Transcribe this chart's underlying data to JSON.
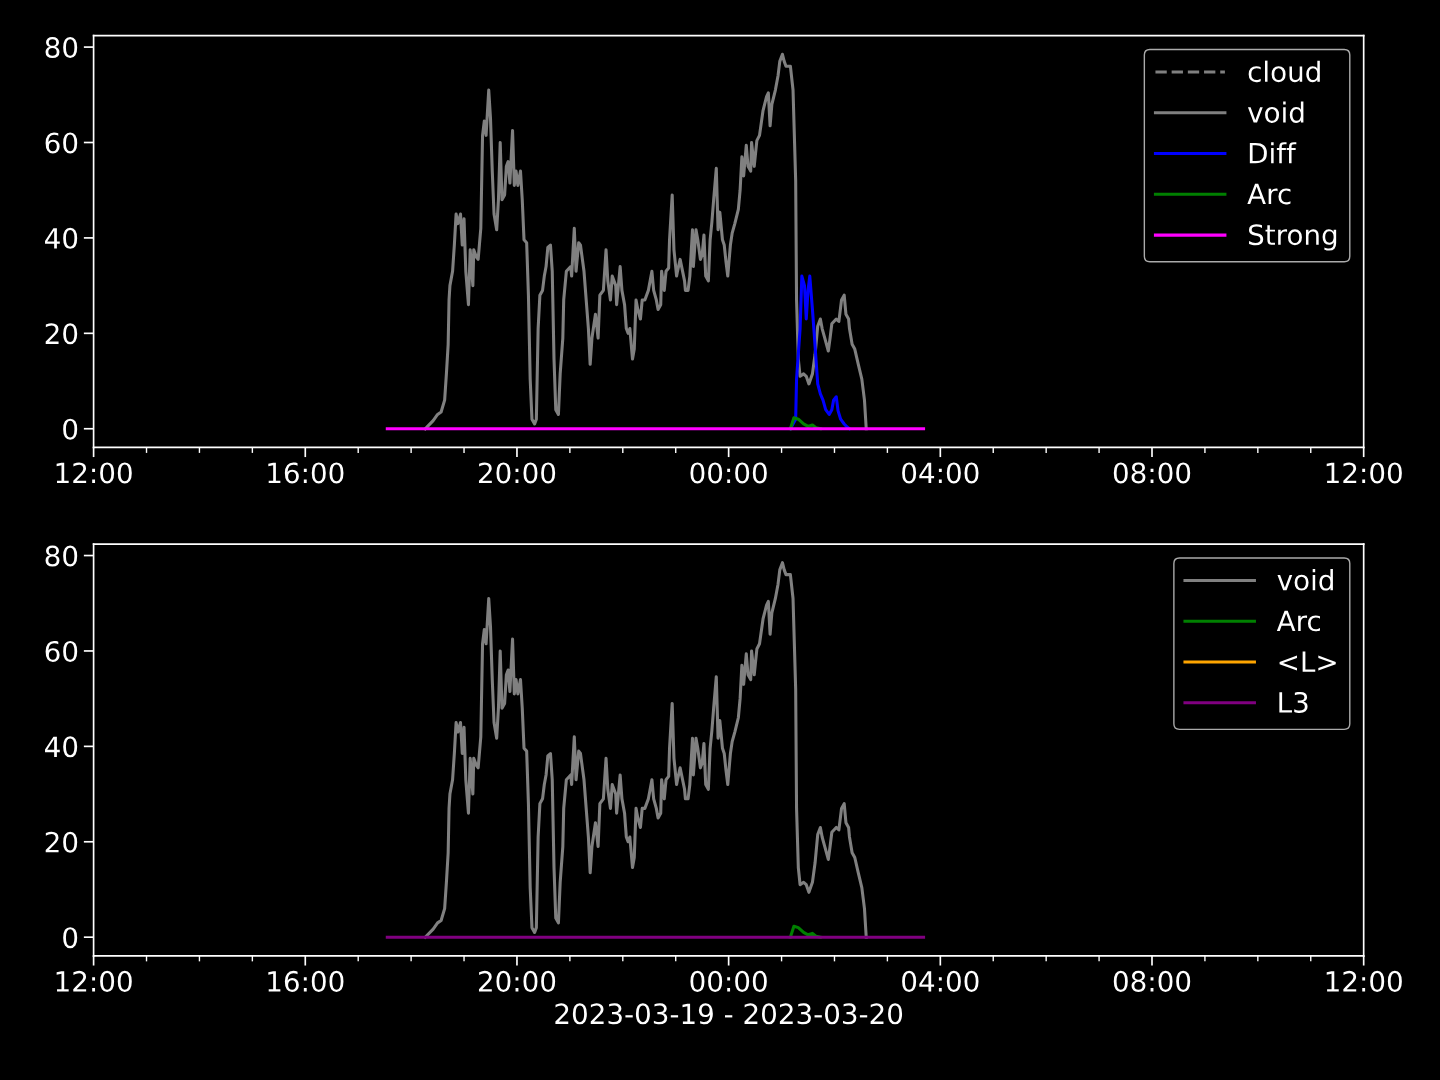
{
  "chart_data": [
    {
      "type": "line",
      "xlim": [
        "2023-03-19T12:00",
        "2023-03-20T12:00"
      ],
      "ylim": [
        -3.9,
        82.4
      ],
      "yticks": [
        0,
        20,
        40,
        60,
        80
      ],
      "xticks": [
        {
          "value": "2023-03-19T12:00",
          "label": "12:00"
        },
        {
          "value": "2023-03-19T13:00",
          "label": null
        },
        {
          "value": "2023-03-19T14:00",
          "label": null
        },
        {
          "value": "2023-03-19T15:00",
          "label": null
        },
        {
          "value": "2023-03-19T16:00",
          "label": "16:00"
        },
        {
          "value": "2023-03-19T17:00",
          "label": null
        },
        {
          "value": "2023-03-19T18:00",
          "label": null
        },
        {
          "value": "2023-03-19T19:00",
          "label": null
        },
        {
          "value": "2023-03-19T20:00",
          "label": "20:00"
        },
        {
          "value": "2023-03-19T21:00",
          "label": null
        },
        {
          "value": "2023-03-19T22:00",
          "label": null
        },
        {
          "value": "2023-03-19T23:00",
          "label": null
        },
        {
          "value": "2023-03-20T00:00",
          "label": "00:00"
        },
        {
          "value": "2023-03-20T01:00",
          "label": null
        },
        {
          "value": "2023-03-20T02:00",
          "label": null
        },
        {
          "value": "2023-03-20T03:00",
          "label": null
        },
        {
          "value": "2023-03-20T04:00",
          "label": "04:00"
        },
        {
          "value": "2023-03-20T05:00",
          "label": null
        },
        {
          "value": "2023-03-20T06:00",
          "label": null
        },
        {
          "value": "2023-03-20T07:00",
          "label": null
        },
        {
          "value": "2023-03-20T08:00",
          "label": "08:00"
        },
        {
          "value": "2023-03-20T09:00",
          "label": null
        },
        {
          "value": "2023-03-20T10:00",
          "label": null
        },
        {
          "value": "2023-03-20T11:00",
          "label": null
        },
        {
          "value": "2023-03-20T12:00",
          "label": "12:00"
        }
      ],
      "legend": "top right",
      "series": [
        {
          "name": "cloud",
          "color": "#808080",
          "line_style": "dashed"
        },
        {
          "name": "void",
          "color": "#808080",
          "line_style": "solid",
          "x": [
            "2023-03-19T18:16",
            "2023-03-19T18:25",
            "2023-03-19T18:30",
            "2023-03-19T18:34",
            "2023-03-19T18:38",
            "2023-03-19T18:40",
            "2023-03-19T18:42",
            "2023-03-19T18:43",
            "2023-03-19T18:44",
            "2023-03-19T18:47",
            "2023-03-19T18:49",
            "2023-03-19T18:51",
            "2023-03-19T18:53",
            "2023-03-19T18:56",
            "2023-03-19T18:58",
            "2023-03-19T19:00",
            "2023-03-19T19:02",
            "2023-03-19T19:05",
            "2023-03-19T19:07",
            "2023-03-19T19:10",
            "2023-03-19T19:11",
            "2023-03-19T19:14",
            "2023-03-19T19:16",
            "2023-03-19T19:19",
            "2023-03-19T19:21",
            "2023-03-19T19:23",
            "2023-03-19T19:25",
            "2023-03-19T19:28",
            "2023-03-19T19:30",
            "2023-03-19T19:32",
            "2023-03-19T19:34",
            "2023-03-19T19:37",
            "2023-03-19T19:39",
            "2023-03-19T19:41",
            "2023-03-19T19:43",
            "2023-03-19T19:46",
            "2023-03-19T19:48",
            "2023-03-19T19:50",
            "2023-03-19T19:52",
            "2023-03-19T19:55",
            "2023-03-19T19:57",
            "2023-03-19T19:59",
            "2023-03-19T20:01",
            "2023-03-19T20:04",
            "2023-03-19T20:06",
            "2023-03-19T20:08",
            "2023-03-19T20:11",
            "2023-03-19T20:13",
            "2023-03-19T20:15",
            "2023-03-19T20:17",
            "2023-03-19T20:20",
            "2023-03-19T20:22",
            "2023-03-19T20:24",
            "2023-03-19T20:26",
            "2023-03-19T20:29",
            "2023-03-19T20:31",
            "2023-03-19T20:33",
            "2023-03-19T20:35",
            "2023-03-19T20:38",
            "2023-03-19T20:40",
            "2023-03-19T20:42",
            "2023-03-19T20:44",
            "2023-03-19T20:47",
            "2023-03-19T20:49",
            "2023-03-19T20:52",
            "2023-03-19T20:53",
            "2023-03-19T20:56",
            "2023-03-19T21:01",
            "2023-03-19T21:02",
            "2023-03-19T21:05",
            "2023-03-19T21:07",
            "2023-03-19T21:10",
            "2023-03-19T21:12",
            "2023-03-19T21:16",
            "2023-03-19T21:21",
            "2023-03-19T21:23",
            "2023-03-19T21:25",
            "2023-03-19T21:29",
            "2023-03-19T21:32",
            "2023-03-19T21:34",
            "2023-03-19T21:38",
            "2023-03-19T21:41",
            "2023-03-19T21:43",
            "2023-03-19T21:46",
            "2023-03-19T21:48",
            "2023-03-19T21:52",
            "2023-03-19T21:53",
            "2023-03-19T21:57",
            "2023-03-19T21:59",
            "2023-03-19T22:02",
            "2023-03-19T22:04",
            "2023-03-19T22:06",
            "2023-03-19T22:08",
            "2023-03-19T22:11",
            "2023-03-19T22:13",
            "2023-03-19T22:15",
            "2023-03-19T22:17",
            "2023-03-19T22:20",
            "2023-03-19T22:22",
            "2023-03-19T22:25",
            "2023-03-19T22:29",
            "2023-03-19T22:33",
            "2023-03-19T22:35",
            "2023-03-19T22:38",
            "2023-03-19T22:40",
            "2023-03-19T22:43",
            "2023-03-19T22:44",
            "2023-03-19T22:47",
            "2023-03-19T22:49",
            "2023-03-19T22:52",
            "2023-03-19T22:53",
            "2023-03-19T22:56",
            "2023-03-19T22:58",
            "2023-03-19T23:01",
            "2023-03-19T23:02",
            "2023-03-19T23:05",
            "2023-03-19T23:10",
            "2023-03-19T23:11",
            "2023-03-19T23:14",
            "2023-03-19T23:16",
            "2023-03-19T23:19",
            "2023-03-19T23:20",
            "2023-03-19T23:23",
            "2023-03-19T23:25",
            "2023-03-19T23:28",
            "2023-03-19T23:30",
            "2023-03-19T23:32",
            "2023-03-19T23:34",
            "2023-03-19T23:37",
            "2023-03-19T23:39",
            "2023-03-19T23:41",
            "2023-03-19T23:43",
            "2023-03-19T23:46",
            "2023-03-19T23:48",
            "2023-03-19T23:50",
            "2023-03-19T23:53",
            "2023-03-19T23:55",
            "2023-03-19T23:57",
            "2023-03-19T23:59",
            "2023-03-20T00:02",
            "2023-03-20T00:04",
            "2023-03-20T00:07",
            "2023-03-20T00:11",
            "2023-03-20T00:13",
            "2023-03-20T00:15",
            "2023-03-20T00:17",
            "2023-03-20T00:20",
            "2023-03-20T00:22",
            "2023-03-20T00:25",
            "2023-03-20T00:26",
            "2023-03-20T00:29",
            "2023-03-20T00:32",
            "2023-03-20T00:35",
            "2023-03-20T00:39",
            "2023-03-20T00:43",
            "2023-03-20T00:45",
            "2023-03-20T00:47",
            "2023-03-20T00:49",
            "2023-03-20T00:53",
            "2023-03-20T00:56",
            "2023-03-20T00:58",
            "2023-03-20T01:01",
            "2023-03-20T01:03",
            "2023-03-20T01:05",
            "2023-03-20T01:10",
            "2023-03-20T01:13",
            "2023-03-20T01:16",
            "2023-03-20T01:17",
            "2023-03-20T01:19",
            "2023-03-20T01:21",
            "2023-03-20T01:25",
            "2023-03-20T01:28",
            "2023-03-20T01:31",
            "2023-03-20T01:35",
            "2023-03-20T01:38",
            "2023-03-20T01:41",
            "2023-03-20T01:44",
            "2023-03-20T01:46",
            "2023-03-20T01:49",
            "2023-03-20T01:53",
            "2023-03-20T01:55",
            "2023-03-20T01:57",
            "2023-03-20T02:02",
            "2023-03-20T02:05",
            "2023-03-20T02:08",
            "2023-03-20T02:11",
            "2023-03-20T02:13",
            "2023-03-20T02:16",
            "2023-03-20T02:17",
            "2023-03-20T02:20",
            "2023-03-20T02:23",
            "2023-03-20T02:27",
            "2023-03-20T02:31",
            "2023-03-20T02:34",
            "2023-03-20T02:36"
          ],
          "values": [
            0,
            1.7,
            3,
            3.5,
            6,
            11.5,
            17.7,
            27,
            30,
            33,
            38.5,
            45,
            43,
            45,
            38.5,
            44,
            33,
            26,
            37.5,
            30,
            37.5,
            36,
            35.5,
            42,
            61.5,
            64.5,
            61.5,
            71,
            65,
            54,
            45,
            41.7,
            48,
            60,
            48,
            49,
            55,
            56,
            51.5,
            62.5,
            51,
            54,
            51,
            54,
            48,
            39.6,
            39,
            28,
            10.4,
            2,
            1,
            2,
            21,
            28,
            29,
            32,
            34,
            38,
            38.5,
            33,
            14.6,
            4,
            3,
            11.5,
            19,
            27,
            33,
            34,
            32,
            42,
            33,
            39,
            38.5,
            33,
            21,
            13.5,
            19,
            24,
            19,
            28,
            29,
            37.5,
            31,
            27,
            32,
            30,
            26,
            34,
            29,
            26,
            21,
            20,
            21,
            14.6,
            16.7,
            27,
            25,
            23,
            27,
            27,
            29,
            33,
            29,
            27,
            25,
            26,
            33,
            29,
            33,
            33.7,
            39.6,
            49,
            37.5,
            32,
            33,
            35.5,
            31,
            29,
            29,
            32,
            41.7,
            34,
            41.7,
            39.6,
            35.5,
            36.5,
            40.6,
            32,
            31,
            39.6,
            43.3,
            48,
            54.6,
            41.7,
            45.4,
            39.6,
            38.5,
            35,
            32,
            38.5,
            41,
            43,
            46,
            50,
            57,
            53,
            59.4,
            55,
            54,
            60,
            55,
            60.4,
            61.5,
            66.7,
            69.6,
            70.4,
            63.5,
            68,
            71,
            74,
            77,
            78.5,
            77,
            76,
            76,
            71,
            52,
            27,
            14.6,
            11,
            11.5,
            11,
            9.4,
            11.5,
            15.6,
            21.5,
            23,
            21,
            19,
            16.3,
            19,
            22,
            23,
            22.5,
            27,
            28,
            24,
            23,
            21,
            17.7,
            16.7,
            13.5,
            10.4,
            6,
            0
          ]
        },
        {
          "name": "Diff",
          "color": "#0000ff",
          "line_style": "solid",
          "x": [
            "2023-03-20T01:10",
            "2023-03-20T01:16",
            "2023-03-20T01:17",
            "2023-03-20T01:21",
            "2023-03-20T01:23",
            "2023-03-20T01:26",
            "2023-03-20T01:28",
            "2023-03-20T01:30",
            "2023-03-20T01:32",
            "2023-03-20T01:35",
            "2023-03-20T01:37",
            "2023-03-20T01:39",
            "2023-03-20T01:41",
            "2023-03-20T01:44",
            "2023-03-20T01:47",
            "2023-03-20T01:50",
            "2023-03-20T01:54",
            "2023-03-20T01:57",
            "2023-03-20T01:59",
            "2023-03-20T02:02",
            "2023-03-20T02:04",
            "2023-03-20T02:07",
            "2023-03-20T02:11",
            "2023-03-20T02:14",
            "2023-03-20T02:17"
          ],
          "values": [
            0,
            2,
            10.4,
            21,
            32,
            30,
            23,
            29,
            32,
            25,
            20,
            14.6,
            9.4,
            7.3,
            6,
            4,
            3,
            4,
            6,
            6.7,
            3.8,
            2,
            1,
            0.4,
            0
          ]
        },
        {
          "name": "Arc",
          "color": "#008000",
          "line_style": "solid",
          "x": [
            "2023-03-20T01:10",
            "2023-03-20T01:14",
            "2023-03-20T01:19",
            "2023-03-20T01:25",
            "2023-03-20T01:30",
            "2023-03-20T01:35",
            "2023-03-20T01:39",
            "2023-03-20T01:44"
          ],
          "values": [
            0,
            2.3,
            2,
            1,
            0.5,
            0.8,
            0.2,
            0
          ]
        },
        {
          "name": "Strong",
          "color": "#ff00ff",
          "line_style": "solid",
          "x": [
            "2023-03-19T17:33",
            "2023-03-20T03:41"
          ],
          "values": [
            0,
            0
          ]
        }
      ]
    },
    {
      "type": "line",
      "xlim": [
        "2023-03-19T12:00",
        "2023-03-20T12:00"
      ],
      "ylim": [
        -3.9,
        82.4
      ],
      "yticks": [
        0,
        20,
        40,
        60,
        80
      ],
      "xlabel": "2023-03-19 - 2023-03-20",
      "xticks": [
        {
          "value": "2023-03-19T12:00",
          "label": "12:00"
        },
        {
          "value": "2023-03-19T13:00",
          "label": null
        },
        {
          "value": "2023-03-19T14:00",
          "label": null
        },
        {
          "value": "2023-03-19T15:00",
          "label": null
        },
        {
          "value": "2023-03-19T16:00",
          "label": "16:00"
        },
        {
          "value": "2023-03-19T17:00",
          "label": null
        },
        {
          "value": "2023-03-19T18:00",
          "label": null
        },
        {
          "value": "2023-03-19T19:00",
          "label": null
        },
        {
          "value": "2023-03-19T20:00",
          "label": "20:00"
        },
        {
          "value": "2023-03-19T21:00",
          "label": null
        },
        {
          "value": "2023-03-19T22:00",
          "label": null
        },
        {
          "value": "2023-03-19T23:00",
          "label": null
        },
        {
          "value": "2023-03-20T00:00",
          "label": "00:00"
        },
        {
          "value": "2023-03-20T01:00",
          "label": null
        },
        {
          "value": "2023-03-20T02:00",
          "label": null
        },
        {
          "value": "2023-03-20T03:00",
          "label": null
        },
        {
          "value": "2023-03-20T04:00",
          "label": "04:00"
        },
        {
          "value": "2023-03-20T05:00",
          "label": null
        },
        {
          "value": "2023-03-20T06:00",
          "label": null
        },
        {
          "value": "2023-03-20T07:00",
          "label": null
        },
        {
          "value": "2023-03-20T08:00",
          "label": "08:00"
        },
        {
          "value": "2023-03-20T09:00",
          "label": null
        },
        {
          "value": "2023-03-20T10:00",
          "label": null
        },
        {
          "value": "2023-03-20T11:00",
          "label": null
        },
        {
          "value": "2023-03-20T12:00",
          "label": "12:00"
        }
      ],
      "legend": "top right",
      "series": [
        {
          "name": "void",
          "color": "#808080",
          "line_style": "solid",
          "x": [
            "2023-03-19T18:16",
            "2023-03-19T18:25",
            "2023-03-19T18:30",
            "2023-03-19T18:34",
            "2023-03-19T18:38",
            "2023-03-19T18:40",
            "2023-03-19T18:42",
            "2023-03-19T18:43",
            "2023-03-19T18:44",
            "2023-03-19T18:47",
            "2023-03-19T18:49",
            "2023-03-19T18:51",
            "2023-03-19T18:53",
            "2023-03-19T18:56",
            "2023-03-19T18:58",
            "2023-03-19T19:00",
            "2023-03-19T19:02",
            "2023-03-19T19:05",
            "2023-03-19T19:07",
            "2023-03-19T19:10",
            "2023-03-19T19:11",
            "2023-03-19T19:14",
            "2023-03-19T19:16",
            "2023-03-19T19:19",
            "2023-03-19T19:21",
            "2023-03-19T19:23",
            "2023-03-19T19:25",
            "2023-03-19T19:28",
            "2023-03-19T19:30",
            "2023-03-19T19:32",
            "2023-03-19T19:34",
            "2023-03-19T19:37",
            "2023-03-19T19:39",
            "2023-03-19T19:41",
            "2023-03-19T19:43",
            "2023-03-19T19:46",
            "2023-03-19T19:48",
            "2023-03-19T19:50",
            "2023-03-19T19:52",
            "2023-03-19T19:55",
            "2023-03-19T19:57",
            "2023-03-19T19:59",
            "2023-03-19T20:01",
            "2023-03-19T20:04",
            "2023-03-19T20:06",
            "2023-03-19T20:08",
            "2023-03-19T20:11",
            "2023-03-19T20:13",
            "2023-03-19T20:15",
            "2023-03-19T20:17",
            "2023-03-19T20:20",
            "2023-03-19T20:22",
            "2023-03-19T20:24",
            "2023-03-19T20:26",
            "2023-03-19T20:29",
            "2023-03-19T20:31",
            "2023-03-19T20:33",
            "2023-03-19T20:35",
            "2023-03-19T20:38",
            "2023-03-19T20:40",
            "2023-03-19T20:42",
            "2023-03-19T20:44",
            "2023-03-19T20:47",
            "2023-03-19T20:49",
            "2023-03-19T20:52",
            "2023-03-19T20:53",
            "2023-03-19T20:56",
            "2023-03-19T21:01",
            "2023-03-19T21:02",
            "2023-03-19T21:05",
            "2023-03-19T21:07",
            "2023-03-19T21:10",
            "2023-03-19T21:12",
            "2023-03-19T21:16",
            "2023-03-19T21:21",
            "2023-03-19T21:23",
            "2023-03-19T21:25",
            "2023-03-19T21:29",
            "2023-03-19T21:32",
            "2023-03-19T21:34",
            "2023-03-19T21:38",
            "2023-03-19T21:41",
            "2023-03-19T21:43",
            "2023-03-19T21:46",
            "2023-03-19T21:48",
            "2023-03-19T21:52",
            "2023-03-19T21:53",
            "2023-03-19T21:57",
            "2023-03-19T21:59",
            "2023-03-19T22:02",
            "2023-03-19T22:04",
            "2023-03-19T22:06",
            "2023-03-19T22:08",
            "2023-03-19T22:11",
            "2023-03-19T22:13",
            "2023-03-19T22:15",
            "2023-03-19T22:17",
            "2023-03-19T22:20",
            "2023-03-19T22:22",
            "2023-03-19T22:25",
            "2023-03-19T22:29",
            "2023-03-19T22:33",
            "2023-03-19T22:35",
            "2023-03-19T22:38",
            "2023-03-19T22:40",
            "2023-03-19T22:43",
            "2023-03-19T22:44",
            "2023-03-19T22:47",
            "2023-03-19T22:49",
            "2023-03-19T22:52",
            "2023-03-19T22:53",
            "2023-03-19T22:56",
            "2023-03-19T22:58",
            "2023-03-19T23:01",
            "2023-03-19T23:02",
            "2023-03-19T23:05",
            "2023-03-19T23:10",
            "2023-03-19T23:11",
            "2023-03-19T23:14",
            "2023-03-19T23:16",
            "2023-03-19T23:19",
            "2023-03-19T23:20",
            "2023-03-19T23:23",
            "2023-03-19T23:25",
            "2023-03-19T23:28",
            "2023-03-19T23:30",
            "2023-03-19T23:32",
            "2023-03-19T23:34",
            "2023-03-19T23:37",
            "2023-03-19T23:39",
            "2023-03-19T23:41",
            "2023-03-19T23:43",
            "2023-03-19T23:46",
            "2023-03-19T23:48",
            "2023-03-19T23:50",
            "2023-03-19T23:53",
            "2023-03-19T23:55",
            "2023-03-19T23:57",
            "2023-03-19T23:59",
            "2023-03-20T00:02",
            "2023-03-20T00:04",
            "2023-03-20T00:07",
            "2023-03-20T00:11",
            "2023-03-20T00:13",
            "2023-03-20T00:15",
            "2023-03-20T00:17",
            "2023-03-20T00:20",
            "2023-03-20T00:22",
            "2023-03-20T00:25",
            "2023-03-20T00:26",
            "2023-03-20T00:29",
            "2023-03-20T00:32",
            "2023-03-20T00:35",
            "2023-03-20T00:39",
            "2023-03-20T00:43",
            "2023-03-20T00:45",
            "2023-03-20T00:47",
            "2023-03-20T00:49",
            "2023-03-20T00:53",
            "2023-03-20T00:56",
            "2023-03-20T00:58",
            "2023-03-20T01:01",
            "2023-03-20T01:03",
            "2023-03-20T01:05",
            "2023-03-20T01:10",
            "2023-03-20T01:13",
            "2023-03-20T01:16",
            "2023-03-20T01:17",
            "2023-03-20T01:19",
            "2023-03-20T01:21",
            "2023-03-20T01:25",
            "2023-03-20T01:28",
            "2023-03-20T01:31",
            "2023-03-20T01:35",
            "2023-03-20T01:38",
            "2023-03-20T01:41",
            "2023-03-20T01:44",
            "2023-03-20T01:46",
            "2023-03-20T01:49",
            "2023-03-20T01:53",
            "2023-03-20T01:55",
            "2023-03-20T01:57",
            "2023-03-20T02:02",
            "2023-03-20T02:05",
            "2023-03-20T02:08",
            "2023-03-20T02:11",
            "2023-03-20T02:13",
            "2023-03-20T02:16",
            "2023-03-20T02:17",
            "2023-03-20T02:20",
            "2023-03-20T02:23",
            "2023-03-20T02:27",
            "2023-03-20T02:31",
            "2023-03-20T02:34",
            "2023-03-20T02:36"
          ],
          "values": [
            0,
            1.7,
            3,
            3.5,
            6,
            11.5,
            17.7,
            27,
            30,
            33,
            38.5,
            45,
            43,
            45,
            38.5,
            44,
            33,
            26,
            37.5,
            30,
            37.5,
            36,
            35.5,
            42,
            61.5,
            64.5,
            61.5,
            71,
            65,
            54,
            45,
            41.7,
            48,
            60,
            48,
            49,
            55,
            56,
            51.5,
            62.5,
            51,
            54,
            51,
            54,
            48,
            39.6,
            39,
            28,
            10.4,
            2,
            1,
            2,
            21,
            28,
            29,
            32,
            34,
            38,
            38.5,
            33,
            14.6,
            4,
            3,
            11.5,
            19,
            27,
            33,
            34,
            32,
            42,
            33,
            39,
            38.5,
            33,
            21,
            13.5,
            19,
            24,
            19,
            28,
            29,
            37.5,
            31,
            27,
            32,
            30,
            26,
            34,
            29,
            26,
            21,
            20,
            21,
            14.6,
            16.7,
            27,
            25,
            23,
            27,
            27,
            29,
            33,
            29,
            27,
            25,
            26,
            33,
            29,
            33,
            33.7,
            39.6,
            49,
            37.5,
            32,
            33,
            35.5,
            31,
            29,
            29,
            32,
            41.7,
            34,
            41.7,
            39.6,
            35.5,
            36.5,
            40.6,
            32,
            31,
            39.6,
            43.3,
            48,
            54.6,
            41.7,
            45.4,
            39.6,
            38.5,
            35,
            32,
            38.5,
            41,
            43,
            46,
            50,
            57,
            53,
            59.4,
            55,
            54,
            60,
            55,
            60.4,
            61.5,
            66.7,
            69.6,
            70.4,
            63.5,
            68,
            71,
            74,
            77,
            78.5,
            77,
            76,
            76,
            71,
            52,
            27,
            14.6,
            11,
            11.5,
            11,
            9.4,
            11.5,
            15.6,
            21.5,
            23,
            21,
            19,
            16.3,
            19,
            22,
            23,
            22.5,
            27,
            28,
            24,
            23,
            21,
            17.7,
            16.7,
            13.5,
            10.4,
            6,
            0
          ]
        },
        {
          "name": "Arc",
          "color": "#008000",
          "line_style": "solid",
          "x": [
            "2023-03-20T01:10",
            "2023-03-20T01:14",
            "2023-03-20T01:19",
            "2023-03-20T01:25",
            "2023-03-20T01:30",
            "2023-03-20T01:35",
            "2023-03-20T01:39",
            "2023-03-20T01:44"
          ],
          "values": [
            0,
            2.3,
            2,
            1,
            0.5,
            0.8,
            0.2,
            0
          ]
        },
        {
          "name": "<L>",
          "color": "#ffa500",
          "line_style": "solid"
        },
        {
          "name": "L3",
          "color": "#800080",
          "line_style": "solid",
          "x": [
            "2023-03-19T17:33",
            "2023-03-20T03:41"
          ],
          "values": [
            0,
            0
          ]
        }
      ]
    }
  ]
}
